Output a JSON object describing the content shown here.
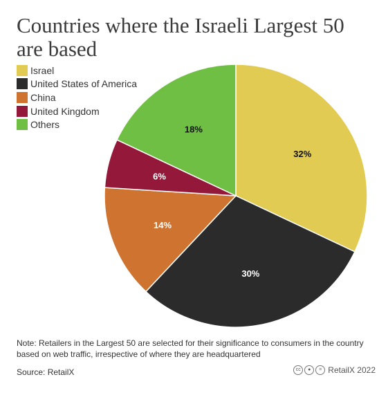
{
  "title": "Countries where the Israeli Largest 50 are based",
  "note": "Note: Retailers in the Largest 50 are selected for their significance to consumers in the country based on web traffic, irrespective of where they are headquartered",
  "source": "Source: RetailX",
  "credit": "RetailX 2022",
  "cc_icons": [
    "cc-icon",
    "by-icon",
    "nd-icon"
  ],
  "chart_data": {
    "type": "pie",
    "title": "Countries where the Israeli Largest 50 are based",
    "legend_position": "top-left",
    "slices": [
      {
        "name": "Israel",
        "value": 32,
        "label": "32%",
        "color": "#e1cb52",
        "label_color": "#111111"
      },
      {
        "name": "United States of America",
        "value": 30,
        "label": "30%",
        "color": "#2b2b2b",
        "label_color": "#ffffff"
      },
      {
        "name": "China",
        "value": 14,
        "label": "14%",
        "color": "#cf7430",
        "label_color": "#ffffff"
      },
      {
        "name": "United Kingdom",
        "value": 6,
        "label": "6%",
        "color": "#94183a",
        "label_color": "#ffffff"
      },
      {
        "name": "Others",
        "value": 18,
        "label": "18%",
        "color": "#70bf45",
        "label_color": "#111111"
      }
    ]
  }
}
